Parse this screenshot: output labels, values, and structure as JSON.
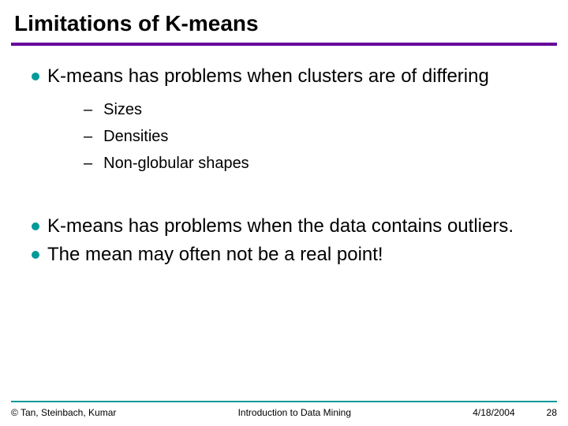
{
  "colors": {
    "title_underline": "#660099",
    "bullet_dot": "#009999",
    "footer_rule": "#009999",
    "text": "#000000",
    "background": "#ffffff"
  },
  "typography": {
    "title_fontsize": 28,
    "title_weight": "bold",
    "lvl1_fontsize": 24,
    "lvl2_fontsize": 20,
    "footer_fontsize": 12,
    "font_family": "Arial"
  },
  "title": "Limitations of K-means",
  "bullets": [
    {
      "text": "K-means has problems when clusters are of differing",
      "sub": [
        "Sizes",
        "Densities",
        "Non-globular shapes"
      ]
    },
    {
      "text": "K-means has problems when the data contains outliers."
    },
    {
      "text": "The mean may often not be a real point!"
    }
  ],
  "footer": {
    "left": "© Tan, Steinbach, Kumar",
    "center": "Introduction to Data Mining",
    "date": "4/18/2004",
    "page": "28"
  }
}
